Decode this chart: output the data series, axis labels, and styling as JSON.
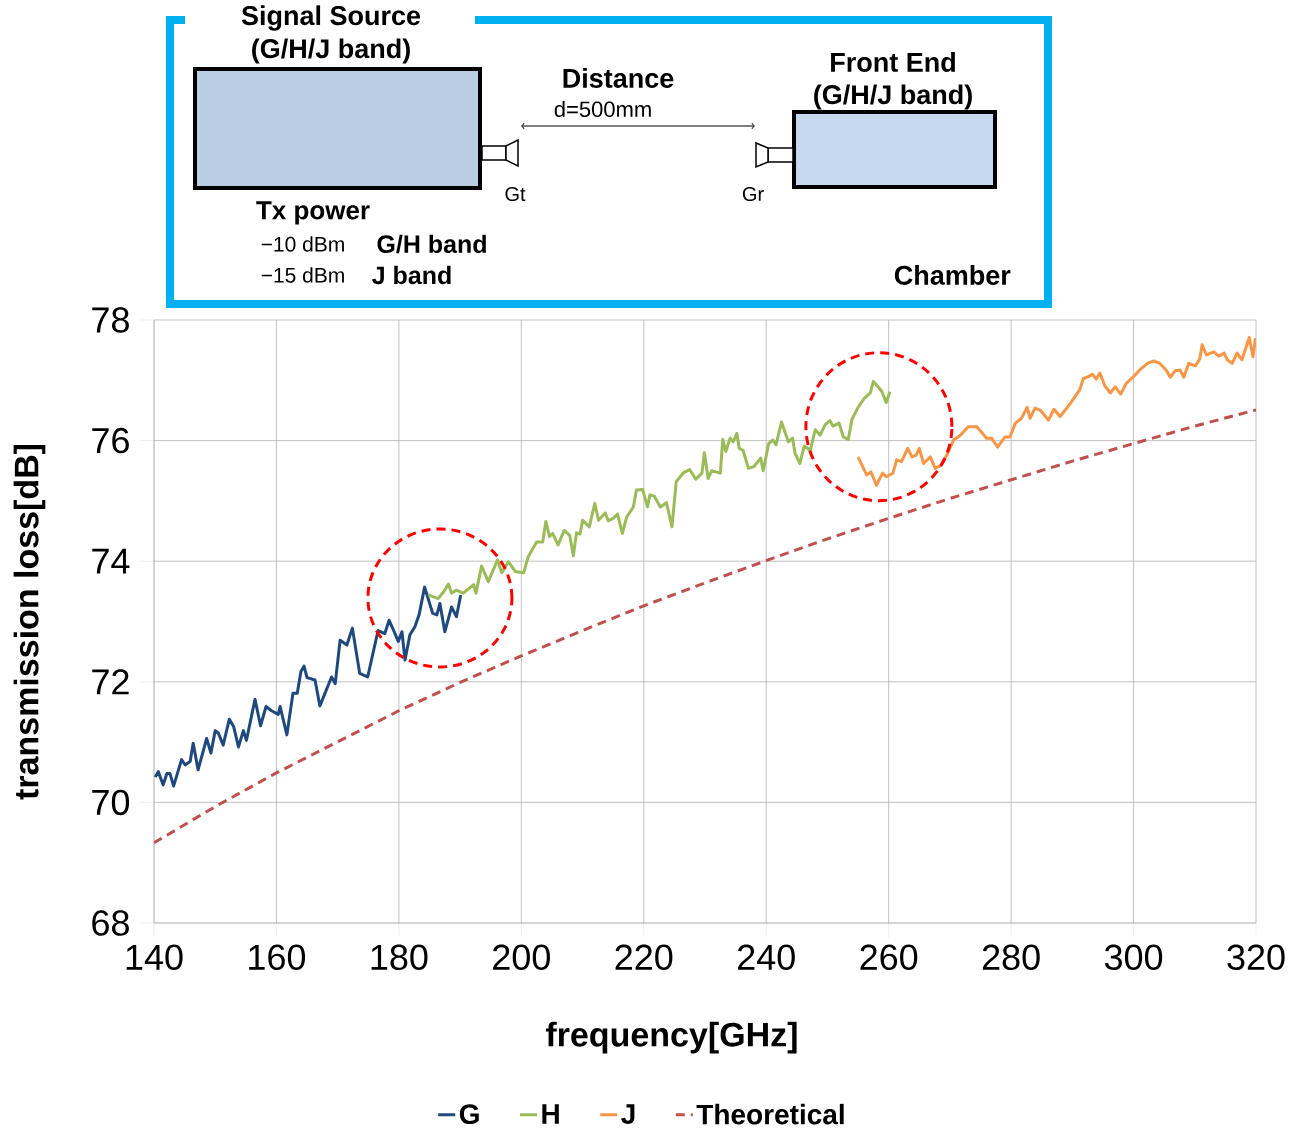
{
  "chart_data": {
    "type": "line",
    "xlabel": "frequency[GHz]",
    "ylabel": "transmission loss[dB]",
    "xlim": [
      140,
      320
    ],
    "xticks": [
      140,
      160,
      180,
      200,
      220,
      240,
      260,
      280,
      300,
      320
    ],
    "ylim": [
      68,
      78
    ],
    "yticks": [
      68,
      70,
      72,
      74,
      76,
      78
    ],
    "grid": true,
    "legend": "bottom",
    "marker": "none",
    "annotations": [
      "Signal Source",
      "(G/H/J band)",
      "Distance",
      "d=500mm",
      "Front End",
      "(G/H/J band)",
      "Gt",
      "Gr",
      "Tx power",
      "−10 dBm",
      "G/H band",
      "−15 dBm",
      "J band",
      "Chamber"
    ],
    "series": [
      {
        "name": "G",
        "color": "#1f497d",
        "x": [
          140.2,
          140.7,
          141.5,
          142.1,
          142.6,
          143.2,
          144.5,
          145.1,
          145.9,
          146.4,
          147.2,
          148.6,
          149.3,
          150.0,
          150.5,
          151.3,
          152.3,
          153.0,
          153.8,
          154.6,
          155.1,
          156.5,
          157.4,
          158.3,
          159.2,
          160.3,
          160.6,
          161.7,
          162.7,
          163.4,
          164.0,
          164.5,
          165.0,
          166.3,
          167.1,
          169.0,
          169.6,
          170.4,
          171.5,
          172.4,
          173.6,
          174.9,
          176.6,
          177.7,
          178.4,
          179.1,
          179.9,
          180.5,
          181.0,
          181.8,
          182.6,
          183.3,
          184.2,
          185.5,
          186.2,
          186.7,
          187.5,
          188.6,
          189.4,
          190.1
        ],
        "values": [
          70.42,
          70.51,
          70.29,
          70.48,
          70.48,
          70.27,
          70.71,
          70.62,
          70.68,
          70.98,
          70.54,
          71.06,
          70.82,
          71.19,
          71.15,
          70.95,
          71.38,
          71.26,
          70.92,
          71.19,
          71.03,
          71.71,
          71.27,
          71.59,
          71.52,
          71.46,
          71.59,
          71.12,
          71.81,
          71.81,
          72.17,
          72.26,
          72.07,
          72.03,
          71.6,
          72.08,
          71.97,
          72.69,
          72.61,
          72.89,
          72.14,
          72.08,
          72.85,
          72.8,
          73.02,
          72.86,
          72.67,
          72.83,
          72.36,
          72.78,
          72.91,
          73.11,
          73.57,
          73.14,
          73.11,
          73.3,
          72.83,
          73.24,
          73.08,
          73.44
        ]
      },
      {
        "name": "H",
        "color": "#9bbb59",
        "x": [
          184.8,
          186.4,
          187.3,
          188.1,
          188.6,
          189.4,
          190.5,
          192.2,
          192.6,
          193.5,
          194.6,
          196.1,
          196.8,
          197.9,
          199.0,
          200.4,
          201.1,
          202.5,
          203.5,
          204.0,
          204.6,
          205.1,
          206.0,
          207.0,
          207.9,
          208.5,
          209.0,
          209.6,
          210.0,
          211.1,
          212.0,
          212.6,
          213.7,
          214.2,
          215.0,
          215.7,
          216.5,
          217.2,
          218.3,
          218.8,
          219.8,
          220.6,
          221.0,
          221.7,
          222.7,
          223.7,
          224.6,
          225.3,
          226.5,
          227.5,
          228.5,
          229.5,
          229.9,
          230.5,
          231.1,
          232.5,
          232.9,
          233.4,
          234.1,
          234.6,
          235.2,
          235.6,
          236.2,
          237.1,
          238.0,
          239.1,
          239.5,
          240.4,
          241.1,
          241.6,
          242.5,
          243.6,
          244.3,
          244.7,
          245.5,
          246.2,
          247.2,
          248.0,
          248.8,
          249.6,
          250.4,
          250.9,
          251.9,
          252.6,
          253.4,
          254.0,
          255.0,
          256.0,
          257.0,
          257.5,
          258.3,
          258.9,
          259.6,
          260.2
        ],
        "values": [
          73.44,
          73.38,
          73.49,
          73.62,
          73.47,
          73.52,
          73.47,
          73.61,
          73.47,
          73.92,
          73.66,
          74.02,
          73.81,
          73.99,
          73.83,
          73.81,
          74.07,
          74.32,
          74.32,
          74.66,
          74.41,
          74.46,
          74.27,
          74.51,
          74.43,
          74.09,
          74.47,
          74.45,
          74.68,
          74.57,
          74.96,
          74.68,
          74.8,
          74.67,
          74.71,
          74.78,
          74.46,
          74.73,
          74.9,
          75.18,
          75.19,
          74.9,
          75.1,
          75.08,
          74.9,
          74.97,
          74.57,
          75.32,
          75.47,
          75.52,
          75.36,
          75.46,
          75.8,
          75.37,
          75.5,
          75.46,
          76.02,
          75.82,
          76.04,
          75.98,
          76.12,
          75.87,
          75.84,
          75.54,
          75.57,
          75.71,
          75.5,
          75.95,
          76.01,
          75.93,
          76.31,
          75.98,
          76.04,
          75.79,
          75.62,
          75.91,
          75.84,
          76.18,
          76.09,
          76.26,
          76.33,
          76.24,
          76.29,
          76.06,
          76.02,
          76.35,
          76.55,
          76.7,
          76.79,
          76.98,
          76.89,
          76.81,
          76.63,
          76.81
        ]
      },
      {
        "name": "J",
        "color": "#f79646",
        "x": [
          255.0,
          256.4,
          257.1,
          258.0,
          259.0,
          259.6,
          260.7,
          261.3,
          262.1,
          263.1,
          263.8,
          264.5,
          265.0,
          265.7,
          266.8,
          267.6,
          268.4,
          269.5,
          270.6,
          271.7,
          273.0,
          274.4,
          276.0,
          276.8,
          277.8,
          279.0,
          279.8,
          280.7,
          281.7,
          282.6,
          283.1,
          283.9,
          284.8,
          286.1,
          287.0,
          288.0,
          289.1,
          289.9,
          291.2,
          291.8,
          292.6,
          293.3,
          293.9,
          294.5,
          295.3,
          296.2,
          297.0,
          297.9,
          298.8,
          299.7,
          301.1,
          302.4,
          303.3,
          304.3,
          305.3,
          306.0,
          306.8,
          307.6,
          308.2,
          309.0,
          310.1,
          310.8,
          311.2,
          311.9,
          313.1,
          313.9,
          314.8,
          315.3,
          316.1,
          316.9,
          317.7,
          318.9,
          319.5,
          319.9
        ],
        "values": [
          75.73,
          75.43,
          75.48,
          75.26,
          75.46,
          75.4,
          75.46,
          75.68,
          75.65,
          75.87,
          75.73,
          75.76,
          75.87,
          75.62,
          75.73,
          75.54,
          75.58,
          75.76,
          76.01,
          76.09,
          76.23,
          76.23,
          76.04,
          76.04,
          75.89,
          76.06,
          76.06,
          76.29,
          76.37,
          76.55,
          76.37,
          76.54,
          76.5,
          76.34,
          76.52,
          76.4,
          76.54,
          76.65,
          76.84,
          77.03,
          77.06,
          77.1,
          77.02,
          77.12,
          76.91,
          76.79,
          76.89,
          76.77,
          76.95,
          77.03,
          77.18,
          77.29,
          77.32,
          77.28,
          77.17,
          77.05,
          77.16,
          77.17,
          77.05,
          77.28,
          77.24,
          77.35,
          77.59,
          77.42,
          77.47,
          77.4,
          77.45,
          77.34,
          77.28,
          77.45,
          77.34,
          77.71,
          77.39,
          77.7
        ]
      },
      {
        "name": "Theoretical",
        "color": "#c0504d",
        "line_style": "dashed",
        "x": [
          140,
          150,
          160,
          180,
          190,
          200,
          210,
          220,
          230,
          240,
          250,
          260,
          270,
          280,
          290,
          300,
          310,
          320
        ],
        "values": [
          69.33,
          69.93,
          70.49,
          71.52,
          71.99,
          72.43,
          72.85,
          73.26,
          73.64,
          74.01,
          74.37,
          74.71,
          75.04,
          75.35,
          75.66,
          75.95,
          76.24,
          76.51
        ]
      }
    ]
  }
}
